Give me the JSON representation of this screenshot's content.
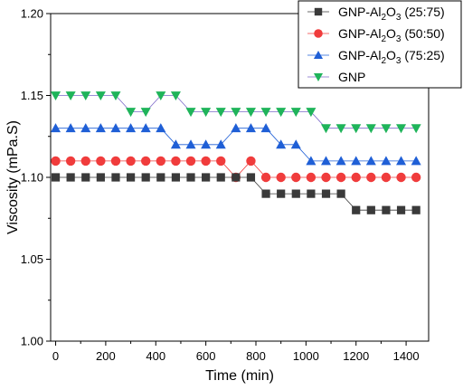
{
  "chart_data": {
    "type": "line",
    "xlabel": "Time (min)",
    "ylabel": "Viscosity (mPa.S)",
    "xlim": [
      -20,
      1490
    ],
    "ylim": [
      1.0,
      1.2
    ],
    "xticks": [
      0,
      200,
      400,
      600,
      800,
      1000,
      1200,
      1400
    ],
    "xtick_labels": [
      "0",
      "200",
      "400",
      "600",
      "800",
      "1000",
      "1200",
      "1400"
    ],
    "yticks": [
      1.0,
      1.05,
      1.1,
      1.15,
      1.2
    ],
    "ytick_labels": [
      "1.00",
      "1.05",
      "1.10",
      "1.15",
      "1.20"
    ],
    "grid": false,
    "legend_position": "top-right",
    "x": [
      0,
      60,
      120,
      180,
      240,
      300,
      360,
      420,
      480,
      540,
      600,
      660,
      720,
      780,
      840,
      900,
      960,
      1020,
      1080,
      1140,
      1200,
      1260,
      1320,
      1380,
      1440
    ],
    "series": [
      {
        "name": "GNP-Al2O3 (25:75)",
        "legend_parts": [
          "GNP-Al",
          "2",
          "O",
          "3",
          " (25:75)"
        ],
        "color": "#3a3a3a",
        "marker": "square",
        "values": [
          1.1,
          1.1,
          1.1,
          1.1,
          1.1,
          1.1,
          1.1,
          1.1,
          1.1,
          1.1,
          1.1,
          1.1,
          1.1,
          1.1,
          1.09,
          1.09,
          1.09,
          1.09,
          1.09,
          1.09,
          1.08,
          1.08,
          1.08,
          1.08,
          1.08
        ]
      },
      {
        "name": "GNP-Al2O3 (50:50)",
        "legend_parts": [
          "GNP-Al",
          "2",
          "O",
          "3",
          " (50:50)"
        ],
        "color": "#f03c3c",
        "marker": "circle",
        "values": [
          1.11,
          1.11,
          1.11,
          1.11,
          1.11,
          1.11,
          1.11,
          1.11,
          1.11,
          1.11,
          1.11,
          1.11,
          1.1,
          1.11,
          1.1,
          1.1,
          1.1,
          1.1,
          1.1,
          1.1,
          1.1,
          1.1,
          1.1,
          1.1,
          1.1
        ]
      },
      {
        "name": "GNP-Al2O3 (75:25)",
        "legend_parts": [
          "GNP-Al",
          "2",
          "O",
          "3",
          " (75:25)"
        ],
        "color": "#1f5fd6",
        "marker": "triangle-up",
        "values": [
          1.13,
          1.13,
          1.13,
          1.13,
          1.13,
          1.13,
          1.13,
          1.13,
          1.12,
          1.12,
          1.12,
          1.12,
          1.13,
          1.13,
          1.13,
          1.12,
          1.12,
          1.11,
          1.11,
          1.11,
          1.11,
          1.11,
          1.11,
          1.11,
          1.11
        ]
      },
      {
        "name": "GNP",
        "legend_parts": [
          "GNP",
          "",
          "",
          "",
          ""
        ],
        "color": "#1fb45a",
        "line_color": "#7b68c9",
        "marker": "triangle-down",
        "values": [
          1.15,
          1.15,
          1.15,
          1.15,
          1.15,
          1.14,
          1.14,
          1.15,
          1.15,
          1.14,
          1.14,
          1.14,
          1.14,
          1.14,
          1.14,
          1.14,
          1.14,
          1.14,
          1.13,
          1.13,
          1.13,
          1.13,
          1.13,
          1.13,
          1.13
        ]
      }
    ]
  }
}
